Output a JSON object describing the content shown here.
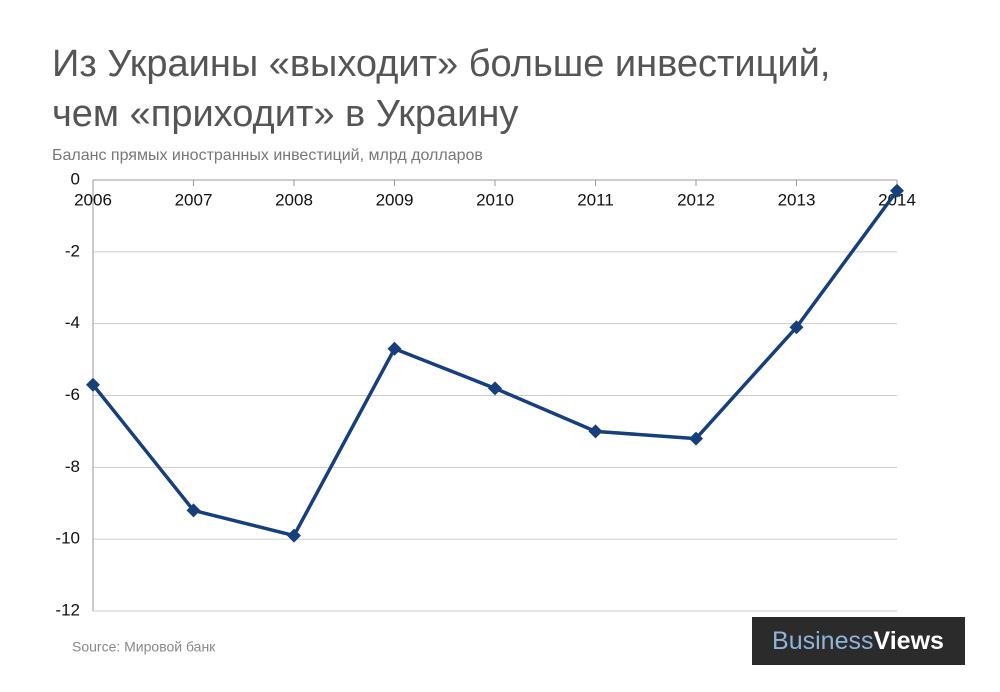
{
  "chart_data": {
    "type": "line",
    "title": [
      "Из Украины «выходит» больше инвестиций,",
      "чем «приходит» в Украину"
    ],
    "subtitle": "Баланс прямых иностранных инвестиций, млрд долларов",
    "categories": [
      "2006",
      "2007",
      "2008",
      "2009",
      "2010",
      "2011",
      "2012",
      "2013",
      "2014"
    ],
    "values": [
      -5.7,
      -9.2,
      -9.9,
      -4.7,
      -5.8,
      -7.0,
      -7.2,
      -4.1,
      -0.3
    ],
    "color": "#173f7c",
    "ylim": [
      -12,
      0
    ],
    "yticks": [
      0,
      -2,
      -4,
      -6,
      -8,
      -10,
      -12
    ],
    "grid": true
  },
  "source": "Source: Мировой банк",
  "logo": {
    "part1": "Business",
    "part2": "Views"
  }
}
